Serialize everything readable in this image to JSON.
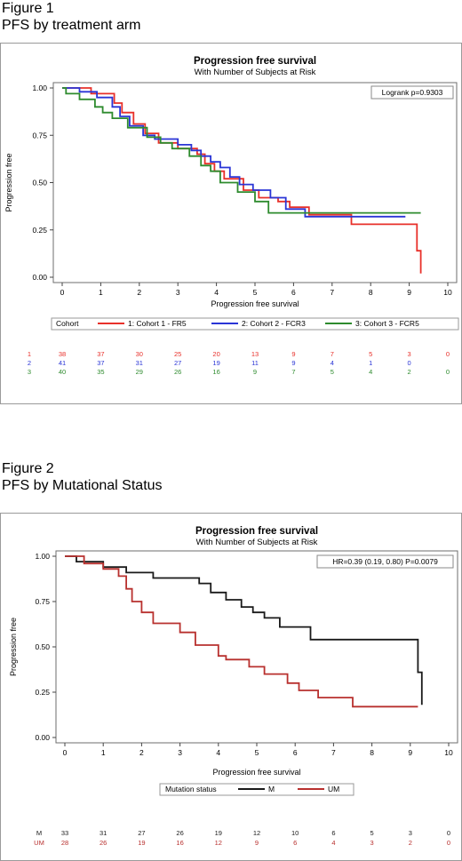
{
  "figures": [
    {
      "caption_line1": "Figure 1",
      "caption_line2": "PFS by treatment arm"
    },
    {
      "caption_line1": "Figure 2",
      "caption_line2": "PFS by Mutational Status"
    }
  ],
  "chart_data": [
    {
      "type": "line",
      "subtype": "kaplan-meier",
      "title": "Progression free survival",
      "subtitle": "With Number of Subjects at Risk",
      "xlabel": "Progression free survival",
      "ylabel": "Progression free",
      "xlim": [
        0,
        10
      ],
      "ylim": [
        0,
        1
      ],
      "xticks": [
        "0",
        "1",
        "2",
        "3",
        "4",
        "5",
        "6",
        "7",
        "8",
        "9",
        "10"
      ],
      "yticks": [
        "0.00",
        "0.25",
        "0.50",
        "0.75",
        "1.00"
      ],
      "grid": false,
      "annotation": "Logrank p=0.9303",
      "legend_title": "Cohort",
      "legend_position": "bottom",
      "series": [
        {
          "name": "1: Cohort 1 - FR5",
          "risk_label": "1",
          "color": "#e8302a",
          "points": [
            [
              0,
              1.0
            ],
            [
              0.75,
              1.0
            ],
            [
              0.75,
              0.97
            ],
            [
              1.35,
              0.97
            ],
            [
              1.35,
              0.92
            ],
            [
              1.55,
              0.92
            ],
            [
              1.55,
              0.87
            ],
            [
              1.85,
              0.87
            ],
            [
              1.85,
              0.81
            ],
            [
              2.15,
              0.81
            ],
            [
              2.15,
              0.76
            ],
            [
              2.5,
              0.76
            ],
            [
              2.5,
              0.71
            ],
            [
              3.0,
              0.71
            ],
            [
              3.0,
              0.68
            ],
            [
              3.5,
              0.68
            ],
            [
              3.5,
              0.65
            ],
            [
              3.7,
              0.65
            ],
            [
              3.7,
              0.6
            ],
            [
              3.95,
              0.6
            ],
            [
              3.95,
              0.56
            ],
            [
              4.2,
              0.56
            ],
            [
              4.2,
              0.52
            ],
            [
              4.7,
              0.52
            ],
            [
              4.7,
              0.46
            ],
            [
              5.1,
              0.46
            ],
            [
              5.1,
              0.42
            ],
            [
              5.6,
              0.42
            ],
            [
              5.6,
              0.4
            ],
            [
              5.9,
              0.4
            ],
            [
              5.9,
              0.37
            ],
            [
              6.4,
              0.37
            ],
            [
              6.4,
              0.33
            ],
            [
              7.5,
              0.33
            ],
            [
              7.5,
              0.28
            ],
            [
              9.2,
              0.28
            ],
            [
              9.2,
              0.14
            ],
            [
              9.3,
              0.14
            ],
            [
              9.3,
              0.02
            ]
          ],
          "at_risk": [
            "38",
            "37",
            "30",
            "25",
            "20",
            "13",
            "9",
            "7",
            "5",
            "3",
            "0"
          ]
        },
        {
          "name": "2: Cohort 2 - FCR3",
          "risk_label": "2",
          "color": "#2a35d6",
          "points": [
            [
              0,
              1.0
            ],
            [
              0.45,
              1.0
            ],
            [
              0.45,
              0.98
            ],
            [
              0.9,
              0.98
            ],
            [
              0.9,
              0.95
            ],
            [
              1.3,
              0.95
            ],
            [
              1.3,
              0.9
            ],
            [
              1.5,
              0.9
            ],
            [
              1.5,
              0.85
            ],
            [
              1.75,
              0.85
            ],
            [
              1.75,
              0.8
            ],
            [
              2.1,
              0.8
            ],
            [
              2.1,
              0.75
            ],
            [
              2.4,
              0.75
            ],
            [
              2.4,
              0.73
            ],
            [
              3.0,
              0.73
            ],
            [
              3.0,
              0.7
            ],
            [
              3.35,
              0.7
            ],
            [
              3.35,
              0.67
            ],
            [
              3.6,
              0.67
            ],
            [
              3.6,
              0.64
            ],
            [
              3.85,
              0.64
            ],
            [
              3.85,
              0.61
            ],
            [
              4.1,
              0.61
            ],
            [
              4.1,
              0.58
            ],
            [
              4.35,
              0.58
            ],
            [
              4.35,
              0.53
            ],
            [
              4.6,
              0.53
            ],
            [
              4.6,
              0.49
            ],
            [
              4.95,
              0.49
            ],
            [
              4.95,
              0.46
            ],
            [
              5.4,
              0.46
            ],
            [
              5.4,
              0.42
            ],
            [
              5.8,
              0.42
            ],
            [
              5.8,
              0.36
            ],
            [
              6.3,
              0.36
            ],
            [
              6.3,
              0.32
            ],
            [
              8.9,
              0.32
            ]
          ],
          "at_risk": [
            "41",
            "37",
            "31",
            "27",
            "19",
            "11",
            "9",
            "4",
            "1",
            "0",
            ""
          ]
        },
        {
          "name": "3: Cohort 3 - FCR5",
          "risk_label": "3",
          "color": "#2e8b2e",
          "points": [
            [
              0,
              1.0
            ],
            [
              0.1,
              1.0
            ],
            [
              0.1,
              0.97
            ],
            [
              0.45,
              0.97
            ],
            [
              0.45,
              0.94
            ],
            [
              0.85,
              0.94
            ],
            [
              0.85,
              0.9
            ],
            [
              1.05,
              0.9
            ],
            [
              1.05,
              0.87
            ],
            [
              1.3,
              0.87
            ],
            [
              1.3,
              0.84
            ],
            [
              1.7,
              0.84
            ],
            [
              1.7,
              0.79
            ],
            [
              2.2,
              0.79
            ],
            [
              2.2,
              0.74
            ],
            [
              2.55,
              0.74
            ],
            [
              2.55,
              0.71
            ],
            [
              2.85,
              0.71
            ],
            [
              2.85,
              0.68
            ],
            [
              3.3,
              0.68
            ],
            [
              3.3,
              0.64
            ],
            [
              3.6,
              0.64
            ],
            [
              3.6,
              0.59
            ],
            [
              3.85,
              0.59
            ],
            [
              3.85,
              0.56
            ],
            [
              4.1,
              0.56
            ],
            [
              4.1,
              0.5
            ],
            [
              4.55,
              0.5
            ],
            [
              4.55,
              0.45
            ],
            [
              5.0,
              0.45
            ],
            [
              5.0,
              0.4
            ],
            [
              5.35,
              0.4
            ],
            [
              5.35,
              0.34
            ],
            [
              9.3,
              0.34
            ]
          ],
          "at_risk": [
            "40",
            "35",
            "29",
            "26",
            "16",
            "9",
            "7",
            "5",
            "4",
            "2",
            "0"
          ]
        }
      ]
    },
    {
      "type": "line",
      "subtype": "kaplan-meier",
      "title": "Progression free survival",
      "subtitle": "With Number of Subjects at Risk",
      "xlabel": "Progression free survival",
      "ylabel": "Progression free",
      "xlim": [
        0,
        10
      ],
      "ylim": [
        0,
        1
      ],
      "xticks": [
        "0",
        "1",
        "2",
        "3",
        "4",
        "5",
        "6",
        "7",
        "8",
        "9",
        "10"
      ],
      "yticks": [
        "0.00",
        "0.25",
        "0.50",
        "0.75",
        "1.00"
      ],
      "grid": false,
      "annotation": "HR=0.39 (0.19, 0.80) P=0.0079",
      "legend_title": "Mutation status",
      "legend_position": "bottom",
      "series": [
        {
          "name": "M",
          "risk_label": "M",
          "color": "#1a1a1a",
          "points": [
            [
              0,
              1.0
            ],
            [
              0.3,
              1.0
            ],
            [
              0.3,
              0.97
            ],
            [
              1.0,
              0.97
            ],
            [
              1.0,
              0.94
            ],
            [
              1.6,
              0.94
            ],
            [
              1.6,
              0.91
            ],
            [
              2.3,
              0.91
            ],
            [
              2.3,
              0.88
            ],
            [
              3.5,
              0.88
            ],
            [
              3.5,
              0.85
            ],
            [
              3.8,
              0.85
            ],
            [
              3.8,
              0.8
            ],
            [
              4.2,
              0.8
            ],
            [
              4.2,
              0.76
            ],
            [
              4.6,
              0.76
            ],
            [
              4.6,
              0.72
            ],
            [
              4.9,
              0.72
            ],
            [
              4.9,
              0.69
            ],
            [
              5.2,
              0.69
            ],
            [
              5.2,
              0.66
            ],
            [
              5.6,
              0.66
            ],
            [
              5.6,
              0.61
            ],
            [
              6.4,
              0.61
            ],
            [
              6.4,
              0.54
            ],
            [
              9.2,
              0.54
            ],
            [
              9.2,
              0.36
            ],
            [
              9.3,
              0.36
            ],
            [
              9.3,
              0.18
            ]
          ],
          "at_risk": [
            "33",
            "31",
            "27",
            "26",
            "19",
            "12",
            "10",
            "6",
            "5",
            "3",
            "0"
          ]
        },
        {
          "name": "UM",
          "risk_label": "UM",
          "color": "#b8302e",
          "points": [
            [
              0,
              1.0
            ],
            [
              0.5,
              1.0
            ],
            [
              0.5,
              0.96
            ],
            [
              1.0,
              0.96
            ],
            [
              1.0,
              0.93
            ],
            [
              1.4,
              0.93
            ],
            [
              1.4,
              0.89
            ],
            [
              1.6,
              0.89
            ],
            [
              1.6,
              0.82
            ],
            [
              1.75,
              0.82
            ],
            [
              1.75,
              0.75
            ],
            [
              2.0,
              0.75
            ],
            [
              2.0,
              0.69
            ],
            [
              2.3,
              0.69
            ],
            [
              2.3,
              0.63
            ],
            [
              3.0,
              0.63
            ],
            [
              3.0,
              0.58
            ],
            [
              3.4,
              0.58
            ],
            [
              3.4,
              0.51
            ],
            [
              4.0,
              0.51
            ],
            [
              4.0,
              0.45
            ],
            [
              4.2,
              0.45
            ],
            [
              4.2,
              0.43
            ],
            [
              4.8,
              0.43
            ],
            [
              4.8,
              0.39
            ],
            [
              5.2,
              0.39
            ],
            [
              5.2,
              0.35
            ],
            [
              5.8,
              0.35
            ],
            [
              5.8,
              0.3
            ],
            [
              6.1,
              0.3
            ],
            [
              6.1,
              0.26
            ],
            [
              6.6,
              0.26
            ],
            [
              6.6,
              0.22
            ],
            [
              7.5,
              0.22
            ],
            [
              7.5,
              0.17
            ],
            [
              9.2,
              0.17
            ]
          ],
          "at_risk": [
            "28",
            "26",
            "19",
            "16",
            "12",
            "9",
            "6",
            "4",
            "3",
            "2",
            "0"
          ]
        }
      ]
    }
  ]
}
